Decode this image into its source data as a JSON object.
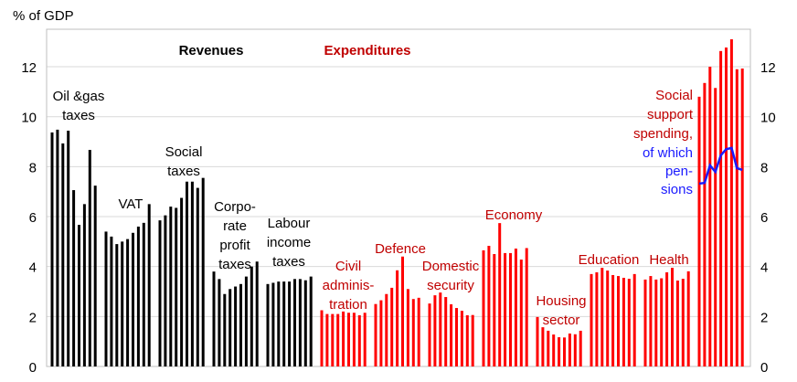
{
  "chart_data": {
    "type": "bar",
    "ylabel": "% of GDP",
    "ylim": [
      0,
      13.5
    ],
    "yticks": [
      "0",
      "2",
      "4",
      "6",
      "8",
      "10",
      "12"
    ],
    "grid": true,
    "section_titles": {
      "revenues": "Revenues",
      "expenditures": "Expenditures"
    },
    "colors": {
      "revenues": "#000000",
      "expenditures": "#ff0000",
      "expenditure_labels": "#c00000",
      "pensions": "#1a1aff",
      "grid": "#d9d9d9"
    },
    "groups": [
      {
        "label": [
          "Oil &gas",
          "taxes"
        ],
        "kind": "revenues",
        "values": [
          9.37,
          9.48,
          8.93,
          9.44,
          7.06,
          5.67,
          6.5,
          8.67,
          7.24
        ]
      },
      {
        "label": [
          "VAT"
        ],
        "kind": "revenues",
        "values": [
          5.4,
          5.2,
          4.9,
          5.0,
          5.1,
          5.35,
          5.6,
          5.75,
          6.5
        ]
      },
      {
        "label": [
          "Social",
          "taxes"
        ],
        "kind": "revenues",
        "values": [
          5.85,
          6.05,
          6.4,
          6.35,
          6.75,
          7.4,
          7.4,
          7.15,
          7.55
        ]
      },
      {
        "label": [
          "Corpo-",
          "rate",
          "profit",
          "taxes"
        ],
        "kind": "revenues",
        "values": [
          3.8,
          3.5,
          2.9,
          3.1,
          3.2,
          3.3,
          3.6,
          4.0,
          4.2
        ]
      },
      {
        "label": [
          "Labour",
          "income",
          "taxes"
        ],
        "kind": "revenues",
        "values": [
          3.3,
          3.35,
          3.4,
          3.4,
          3.4,
          3.5,
          3.5,
          3.45,
          3.6
        ]
      },
      {
        "label": [
          "Civil",
          "adminis-",
          "tration"
        ],
        "kind": "expenditures",
        "values": [
          2.25,
          2.1,
          2.1,
          2.1,
          2.2,
          2.15,
          2.15,
          2.05,
          2.15
        ]
      },
      {
        "label": [
          "Defence"
        ],
        "kind": "expenditures",
        "values": [
          2.5,
          2.65,
          2.9,
          3.15,
          3.85,
          4.4,
          3.1,
          2.7,
          2.75
        ]
      },
      {
        "label": [
          "Domestic",
          "security"
        ],
        "kind": "expenditures",
        "values": [
          2.52,
          2.85,
          2.96,
          2.78,
          2.49,
          2.34,
          2.23,
          2.05,
          2.06
        ]
      },
      {
        "label": [
          "Economy"
        ],
        "kind": "expenditures",
        "values": [
          4.65,
          4.83,
          4.5,
          5.74,
          4.54,
          4.54,
          4.72,
          4.28,
          4.74
        ]
      },
      {
        "label": [
          "Housing",
          "sector"
        ],
        "kind": "expenditures",
        "values": [
          1.98,
          1.57,
          1.43,
          1.28,
          1.17,
          1.16,
          1.32,
          1.29,
          1.43
        ]
      },
      {
        "label": [
          "Education"
        ],
        "kind": "expenditures",
        "values": [
          3.7,
          3.77,
          3.95,
          3.84,
          3.66,
          3.62,
          3.55,
          3.51,
          3.7
        ]
      },
      {
        "label": [
          "Health"
        ],
        "kind": "expenditures",
        "values": [
          3.48,
          3.62,
          3.48,
          3.53,
          3.77,
          3.95,
          3.44,
          3.51,
          3.81
        ]
      },
      {
        "label": [
          "Social",
          "support",
          "spending,"
        ],
        "kind": "expenditures",
        "values": [
          10.8,
          11.35,
          12.0,
          11.15,
          12.63,
          12.77,
          13.1,
          11.9,
          11.93
        ]
      }
    ],
    "pensions": {
      "label": [
        "of which",
        "pen-",
        "sions"
      ],
      "values": [
        7.32,
        7.35,
        8.05,
        7.79,
        8.45,
        8.7,
        8.75,
        7.94,
        7.87
      ]
    }
  }
}
